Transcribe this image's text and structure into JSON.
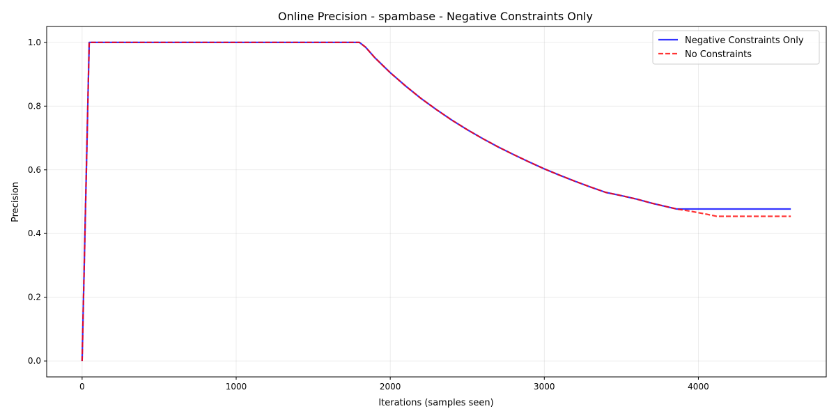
{
  "chart_data": {
    "type": "line",
    "title": "Online Precision - spambase - Negative Constraints Only",
    "xlabel": "Iterations (samples seen)",
    "ylabel": "Precision",
    "xlim": [
      -230,
      4830
    ],
    "ylim": [
      -0.05,
      1.05
    ],
    "xticks": [
      0,
      1000,
      2000,
      3000,
      4000
    ],
    "yticks": [
      0.0,
      0.2,
      0.4,
      0.6,
      0.8,
      1.0
    ],
    "xtick_labels": [
      "0",
      "1000",
      "2000",
      "3000",
      "4000"
    ],
    "ytick_labels": [
      "0.0",
      "0.2",
      "0.4",
      "0.6",
      "0.8",
      "1.0"
    ],
    "grid": true,
    "legend_position": "top-right",
    "series": [
      {
        "name": "Negative Constraints Only",
        "color": "#0000ff",
        "style": "solid",
        "points": [
          [
            0,
            0.0
          ],
          [
            46,
            1.0
          ],
          [
            1800,
            1.0
          ],
          [
            1840,
            0.985
          ],
          [
            1900,
            0.952
          ],
          [
            2000,
            0.905
          ],
          [
            2100,
            0.863
          ],
          [
            2200,
            0.824
          ],
          [
            2300,
            0.789
          ],
          [
            2400,
            0.756
          ],
          [
            2500,
            0.726
          ],
          [
            2600,
            0.698
          ],
          [
            2700,
            0.672
          ],
          [
            2800,
            0.648
          ],
          [
            2900,
            0.625
          ],
          [
            3000,
            0.603
          ],
          [
            3100,
            0.583
          ],
          [
            3200,
            0.564
          ],
          [
            3300,
            0.546
          ],
          [
            3400,
            0.529
          ],
          [
            3500,
            0.519
          ],
          [
            3600,
            0.508
          ],
          [
            3700,
            0.495
          ],
          [
            3860,
            0.477
          ],
          [
            4600,
            0.477
          ]
        ]
      },
      {
        "name": "No Constraints",
        "color": "#ff0000",
        "style": "dashed",
        "points": [
          [
            0,
            0.0
          ],
          [
            46,
            1.0
          ],
          [
            1800,
            1.0
          ],
          [
            1840,
            0.985
          ],
          [
            1900,
            0.952
          ],
          [
            2000,
            0.905
          ],
          [
            2100,
            0.863
          ],
          [
            2200,
            0.824
          ],
          [
            2300,
            0.789
          ],
          [
            2400,
            0.756
          ],
          [
            2500,
            0.726
          ],
          [
            2600,
            0.698
          ],
          [
            2700,
            0.672
          ],
          [
            2800,
            0.648
          ],
          [
            2900,
            0.625
          ],
          [
            3000,
            0.603
          ],
          [
            3100,
            0.583
          ],
          [
            3200,
            0.564
          ],
          [
            3300,
            0.546
          ],
          [
            3400,
            0.529
          ],
          [
            3500,
            0.519
          ],
          [
            3600,
            0.508
          ],
          [
            3700,
            0.495
          ],
          [
            3860,
            0.477
          ],
          [
            3950,
            0.47
          ],
          [
            4050,
            0.461
          ],
          [
            4120,
            0.454
          ],
          [
            4600,
            0.454
          ]
        ]
      }
    ]
  }
}
